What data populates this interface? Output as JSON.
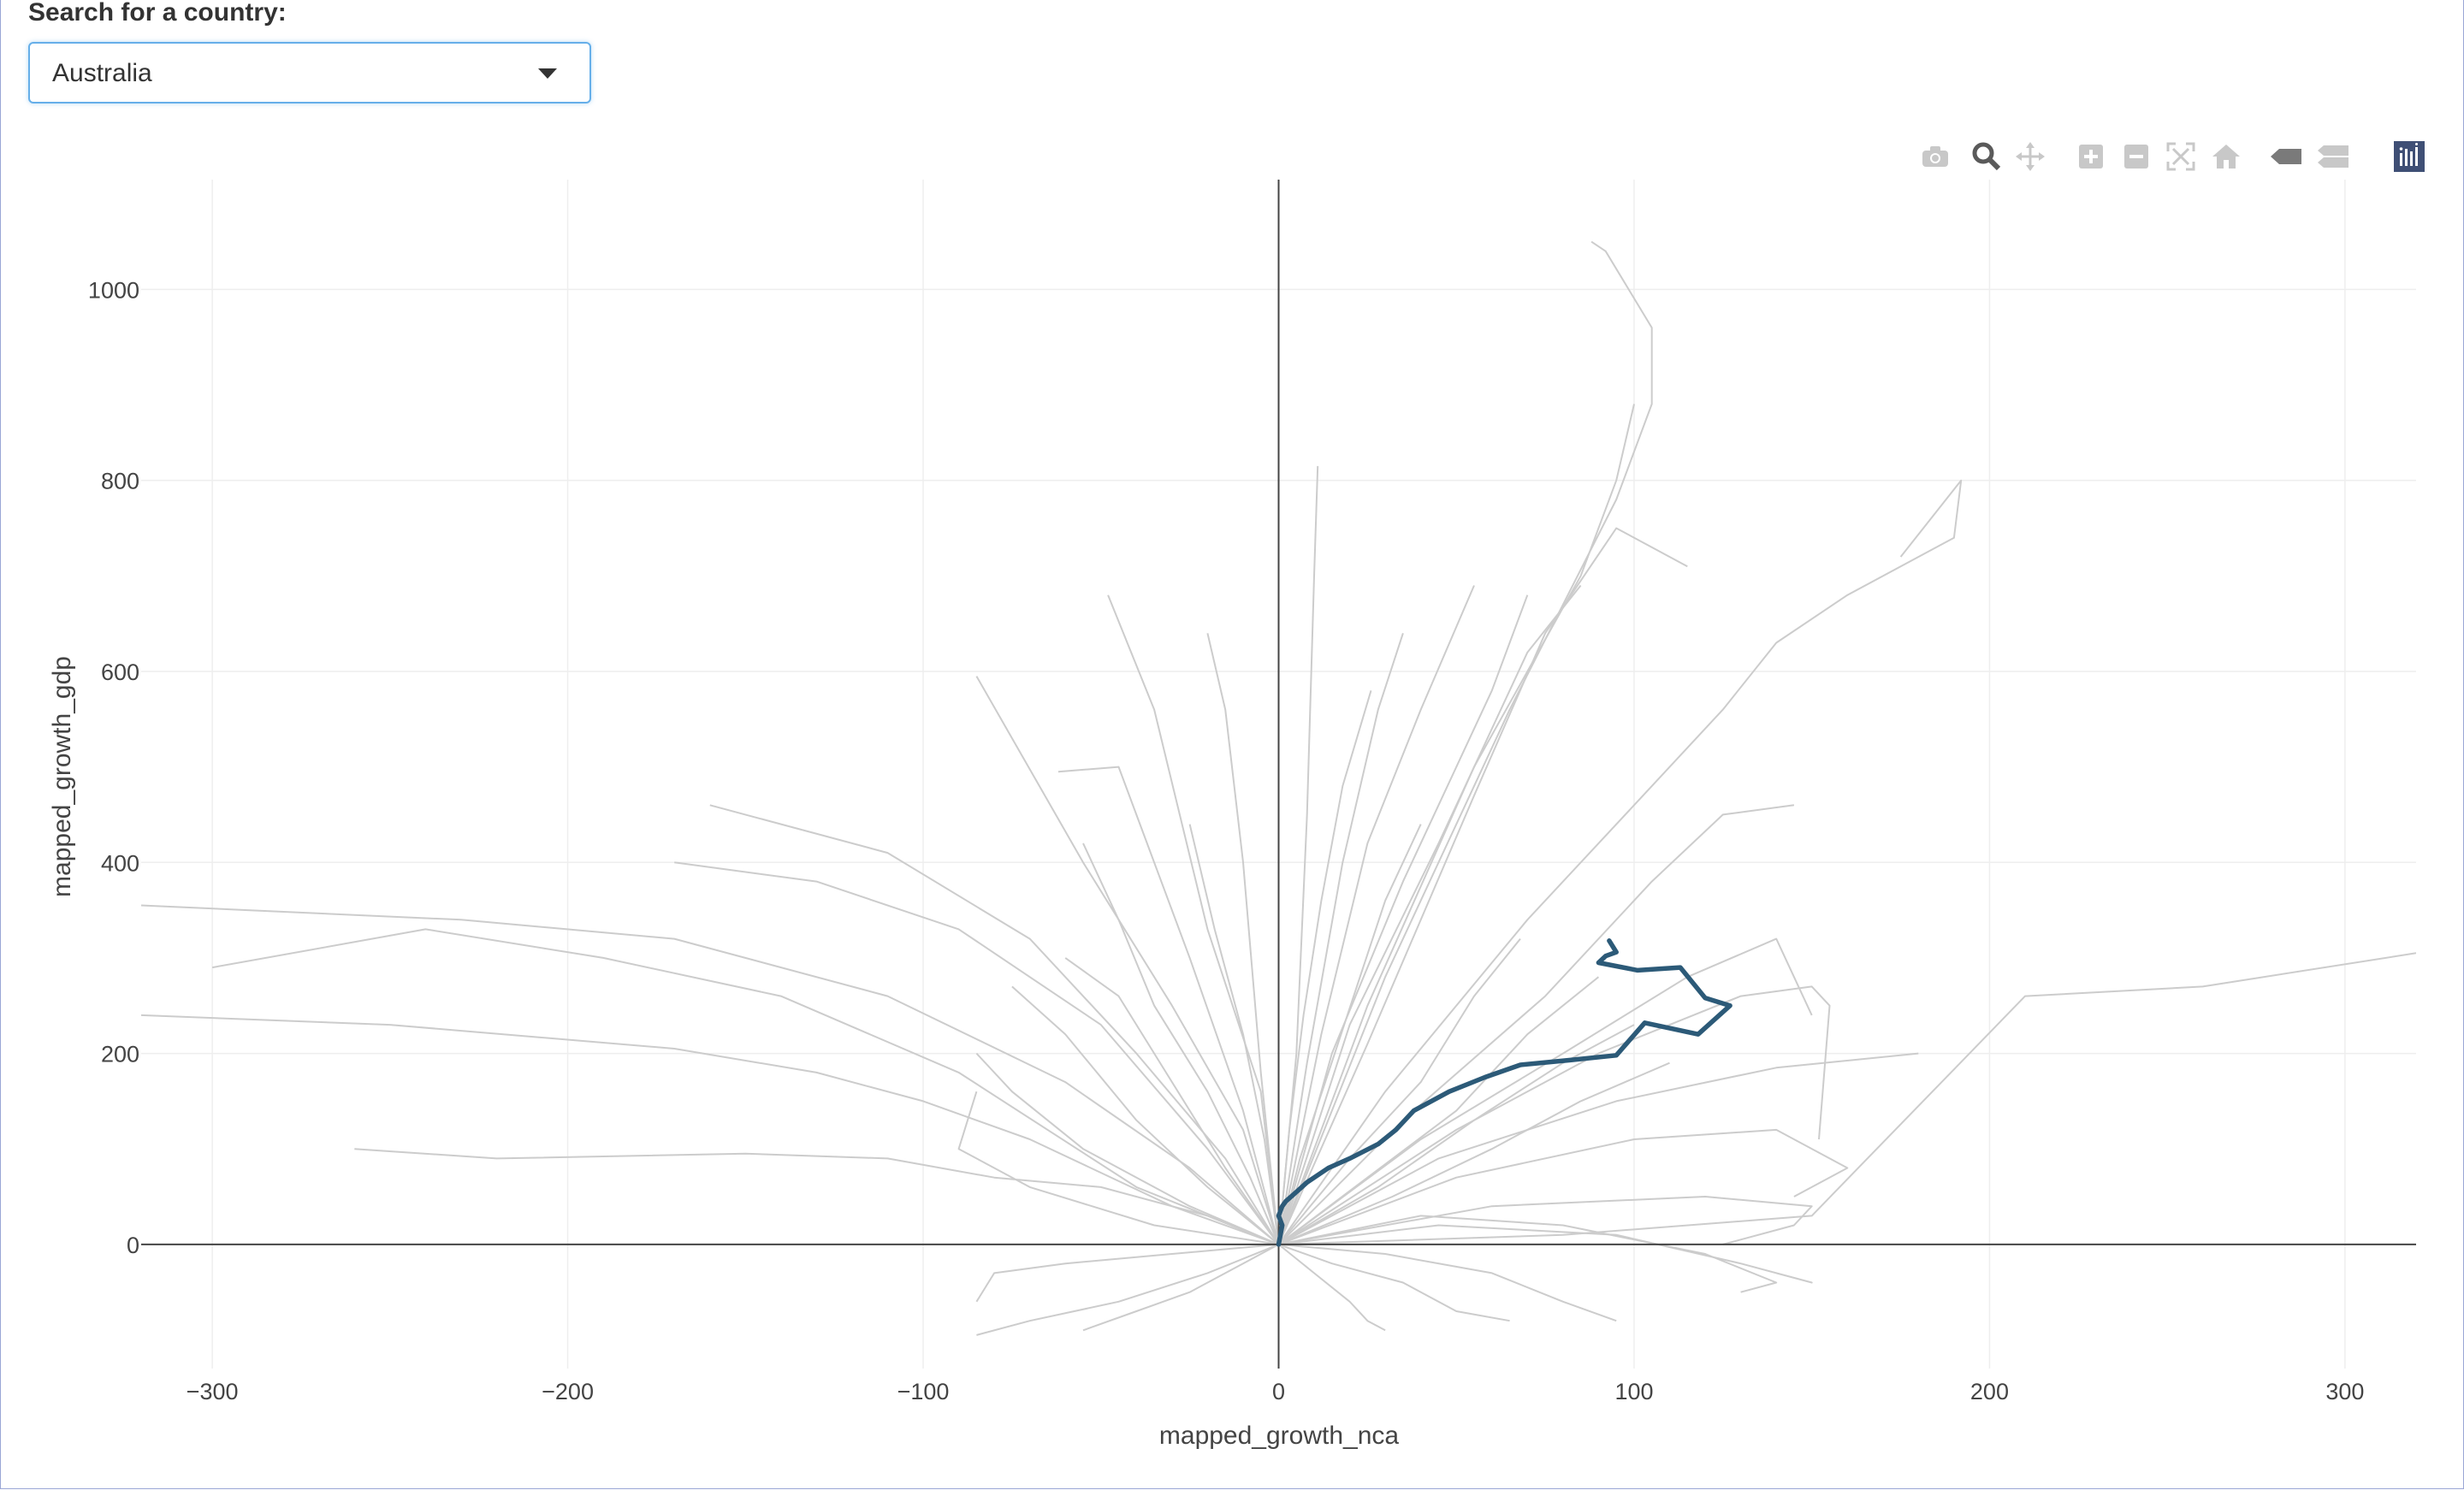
{
  "search": {
    "label": "Search for a country:",
    "selected": "Australia"
  },
  "modebar": {
    "buttons": [
      "camera-icon",
      "zoom-icon",
      "pan-icon",
      "zoom-in-icon",
      "zoom-out-icon",
      "autoscale-icon",
      "reset-axes-icon",
      "hover-closest-icon",
      "hover-compare-icon",
      "plotly-logo-icon"
    ]
  },
  "colors": {
    "highlight": "#2c5a78",
    "background_lines": "#cccccc",
    "grid": "#eeeeee",
    "zeroline": "#444444",
    "select_border": "#66afe9",
    "plotly_logo": "#3f4f75"
  },
  "chart_data": {
    "type": "line",
    "xlabel": "mapped_growth_nca",
    "ylabel": "mapped_growth_gdp",
    "xlim": [
      -320,
      320
    ],
    "ylim": [
      -130,
      1115
    ],
    "xticks": [
      -300,
      -200,
      -100,
      0,
      100,
      200,
      300
    ],
    "yticks": [
      0,
      200,
      400,
      600,
      800,
      1000
    ],
    "xtick_labels": [
      "−300",
      "−200",
      "−100",
      "0",
      "100",
      "200",
      "300"
    ],
    "ytick_labels": [
      "0",
      "200",
      "400",
      "600",
      "800",
      "1000"
    ],
    "grid": true,
    "legend": "none",
    "highlight_series": {
      "name": "Australia",
      "x": [
        0,
        1,
        0,
        1,
        2,
        5,
        8,
        14,
        20,
        28,
        33,
        38,
        48,
        58,
        68,
        82,
        95,
        103,
        118,
        127,
        120,
        113,
        101,
        90,
        92,
        95,
        93
      ],
      "y": [
        0,
        20,
        30,
        40,
        45,
        55,
        65,
        80,
        90,
        105,
        120,
        140,
        160,
        175,
        188,
        193,
        198,
        232,
        220,
        250,
        258,
        290,
        287,
        295,
        302,
        306,
        318
      ]
    },
    "background_series": [
      {
        "x": [
          0,
          -20,
          -50,
          -80,
          -110,
          -150,
          -220,
          -260
        ],
        "y": [
          0,
          30,
          60,
          70,
          90,
          95,
          90,
          100
        ]
      },
      {
        "x": [
          0,
          -30,
          -70,
          -100,
          -130,
          -170,
          -250,
          -320
        ],
        "y": [
          0,
          40,
          110,
          150,
          180,
          205,
          230,
          240
        ]
      },
      {
        "x": [
          0,
          -40,
          -90,
          -140,
          -190,
          -240,
          -300
        ],
        "y": [
          0,
          60,
          180,
          260,
          300,
          330,
          290
        ]
      },
      {
        "x": [
          0,
          -25,
          -60,
          -110,
          -170,
          -230,
          -290,
          -320
        ],
        "y": [
          0,
          80,
          170,
          260,
          320,
          340,
          350,
          355
        ]
      },
      {
        "x": [
          0,
          -20,
          -50,
          -90,
          -130,
          -170
        ],
        "y": [
          0,
          100,
          230,
          330,
          380,
          400
        ]
      },
      {
        "x": [
          0,
          -15,
          -40,
          -70,
          -110,
          -160
        ],
        "y": [
          0,
          90,
          200,
          320,
          410,
          460
        ]
      },
      {
        "x": [
          0,
          -10,
          -30,
          -55,
          -85
        ],
        "y": [
          0,
          120,
          250,
          400,
          595
        ]
      },
      {
        "x": [
          0,
          -10,
          -25,
          -45,
          -62
        ],
        "y": [
          0,
          140,
          300,
          500,
          495
        ]
      },
      {
        "x": [
          0,
          -5,
          -20,
          -35,
          -48
        ],
        "y": [
          0,
          160,
          330,
          560,
          680
        ]
      },
      {
        "x": [
          0,
          -5,
          -10,
          -15,
          -20
        ],
        "y": [
          0,
          180,
          400,
          560,
          640
        ]
      },
      {
        "x": [
          0,
          5,
          8,
          10,
          11
        ],
        "y": [
          0,
          200,
          450,
          700,
          815
        ]
      },
      {
        "x": [
          0,
          8,
          18,
          28,
          35
        ],
        "y": [
          0,
          190,
          400,
          560,
          640
        ]
      },
      {
        "x": [
          0,
          12,
          25,
          40,
          55
        ],
        "y": [
          0,
          220,
          420,
          560,
          690
        ]
      },
      {
        "x": [
          0,
          15,
          35,
          60,
          70
        ],
        "y": [
          0,
          200,
          380,
          580,
          680
        ]
      },
      {
        "x": [
          0,
          20,
          45,
          70,
          85
        ],
        "y": [
          0,
          230,
          420,
          620,
          690
        ]
      },
      {
        "x": [
          0,
          25,
          55,
          85,
          95,
          100
        ],
        "y": [
          0,
          250,
          500,
          700,
          800,
          880
        ]
      },
      {
        "x": [
          0,
          30,
          65,
          95,
          105,
          105,
          92,
          88
        ],
        "y": [
          0,
          280,
          560,
          780,
          880,
          960,
          1040,
          1050
        ]
      },
      {
        "x": [
          0,
          25,
          55,
          75,
          95,
          115
        ],
        "y": [
          0,
          210,
          470,
          640,
          750,
          710
        ]
      },
      {
        "x": [
          0,
          30,
          70,
          100,
          125,
          140,
          160,
          190,
          192,
          175
        ],
        "y": [
          0,
          160,
          340,
          460,
          560,
          630,
          680,
          740,
          800,
          720
        ]
      },
      {
        "x": [
          0,
          35,
          75,
          105,
          125,
          145
        ],
        "y": [
          0,
          130,
          260,
          380,
          450,
          460
        ]
      },
      {
        "x": [
          0,
          40,
          80,
          115,
          140,
          150
        ],
        "y": [
          0,
          110,
          200,
          280,
          320,
          240
        ]
      },
      {
        "x": [
          0,
          45,
          95,
          140,
          180
        ],
        "y": [
          0,
          90,
          150,
          185,
          200
        ]
      },
      {
        "x": [
          0,
          50,
          100,
          140,
          160,
          145
        ],
        "y": [
          0,
          70,
          110,
          120,
          80,
          50
        ]
      },
      {
        "x": [
          0,
          60,
          120,
          150,
          145,
          125
        ],
        "y": [
          0,
          40,
          50,
          40,
          20,
          0
        ]
      },
      {
        "x": [
          0,
          45,
          95,
          130,
          150,
          140
        ],
        "y": [
          0,
          20,
          10,
          -20,
          -40,
          -30
        ]
      },
      {
        "x": [
          0,
          40,
          80,
          120,
          140,
          130
        ],
        "y": [
          0,
          30,
          20,
          -10,
          -40,
          -50
        ]
      },
      {
        "x": [
          0,
          80,
          150,
          210,
          260,
          320
        ],
        "y": [
          0,
          10,
          30,
          260,
          270,
          305
        ]
      },
      {
        "x": [
          0,
          50,
          90,
          130,
          150,
          155,
          152
        ],
        "y": [
          0,
          120,
          200,
          260,
          270,
          250,
          110
        ]
      },
      {
        "x": [
          0,
          10,
          20,
          25,
          30
        ],
        "y": [
          0,
          -30,
          -60,
          -80,
          -90
        ]
      },
      {
        "x": [
          0,
          -20,
          -45,
          -70,
          -85
        ],
        "y": [
          0,
          -30,
          -60,
          -80,
          -95
        ]
      },
      {
        "x": [
          0,
          -10,
          -25,
          -40,
          -55
        ],
        "y": [
          0,
          -20,
          -50,
          -70,
          -90
        ]
      },
      {
        "x": [
          0,
          -30,
          -60,
          -80,
          -85
        ],
        "y": [
          0,
          -10,
          -20,
          -30,
          -60
        ]
      },
      {
        "x": [
          0,
          15,
          35,
          50,
          65
        ],
        "y": [
          0,
          -20,
          -40,
          -70,
          -80
        ]
      },
      {
        "x": [
          0,
          30,
          60,
          80,
          95
        ],
        "y": [
          0,
          -10,
          -30,
          -60,
          -80
        ]
      },
      {
        "x": [
          0,
          -35,
          -70,
          -90,
          -85
        ],
        "y": [
          0,
          20,
          60,
          100,
          160
        ]
      },
      {
        "x": [
          0,
          -25,
          -55,
          -75,
          -85
        ],
        "y": [
          0,
          40,
          100,
          160,
          200
        ]
      },
      {
        "x": [
          0,
          -20,
          -40,
          -60,
          -75
        ],
        "y": [
          0,
          60,
          130,
          220,
          270
        ]
      },
      {
        "x": [
          0,
          -15,
          -30,
          -45,
          -60
        ],
        "y": [
          0,
          80,
          170,
          260,
          300
        ]
      },
      {
        "x": [
          0,
          20,
          40,
          55,
          68
        ],
        "y": [
          0,
          90,
          170,
          260,
          320
        ]
      },
      {
        "x": [
          0,
          25,
          50,
          70,
          90
        ],
        "y": [
          0,
          70,
          140,
          220,
          280
        ]
      },
      {
        "x": [
          0,
          28,
          55,
          80,
          100
        ],
        "y": [
          0,
          60,
          130,
          190,
          230
        ]
      },
      {
        "x": [
          0,
          32,
          60,
          85,
          110
        ],
        "y": [
          0,
          50,
          100,
          150,
          190
        ]
      },
      {
        "x": [
          0,
          -8,
          -20,
          -35,
          -45,
          -55
        ],
        "y": [
          0,
          70,
          160,
          250,
          340,
          420
        ]
      },
      {
        "x": [
          0,
          6,
          14,
          22,
          30,
          40
        ],
        "y": [
          0,
          90,
          180,
          270,
          360,
          440
        ]
      },
      {
        "x": [
          0,
          -4,
          -10,
          -18,
          -25
        ],
        "y": [
          0,
          110,
          220,
          330,
          440
        ]
      },
      {
        "x": [
          0,
          3,
          7,
          12,
          18,
          26
        ],
        "y": [
          0,
          120,
          240,
          360,
          480,
          580
        ]
      }
    ]
  }
}
